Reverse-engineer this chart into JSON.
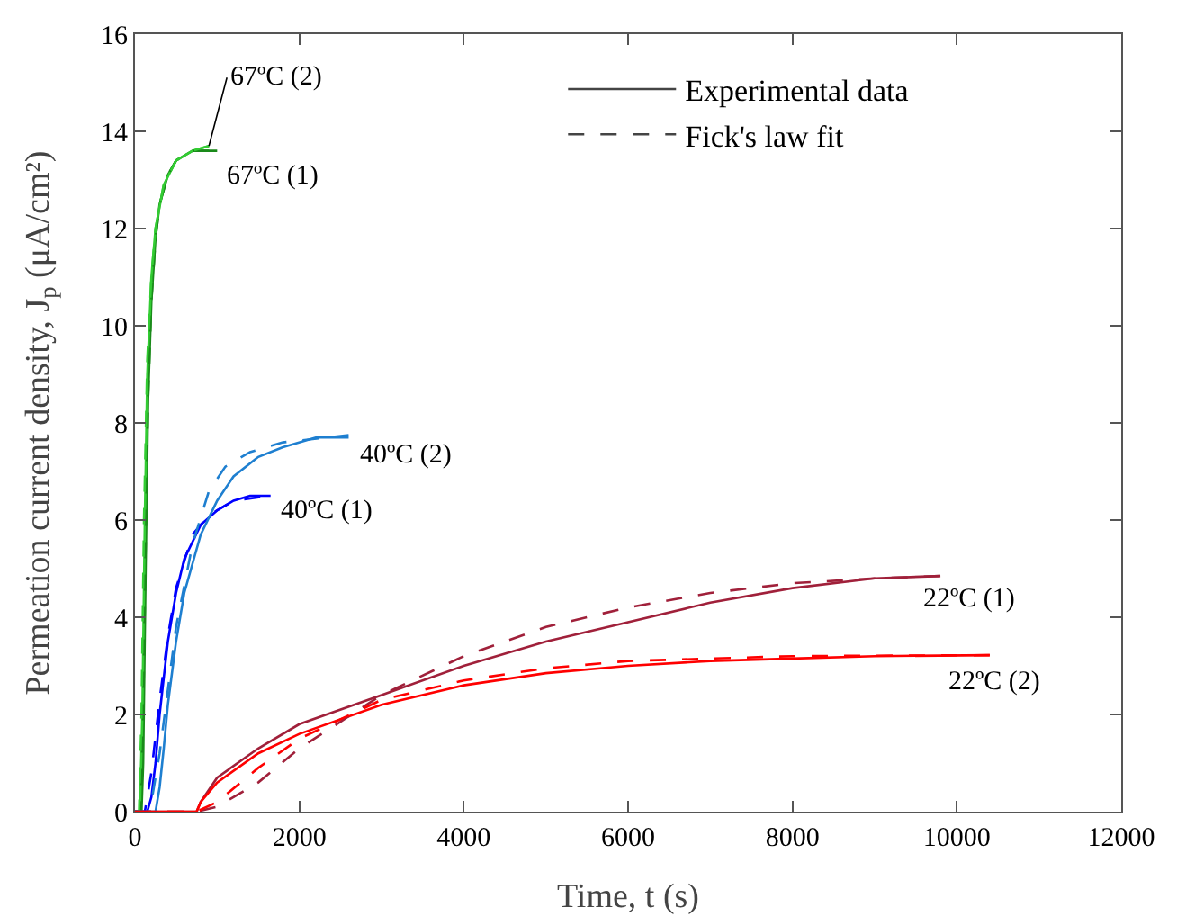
{
  "chart_data": {
    "type": "line",
    "xlabel": "Time, t (s)",
    "ylabel": "Permeation current density, J$_{p}$ (μA/cm²)",
    "xlim": [
      0,
      12000
    ],
    "xticks": [
      0,
      2000,
      4000,
      6000,
      8000,
      10000,
      12000
    ],
    "ylim": [
      0,
      16
    ],
    "yticks": [
      0,
      2,
      4,
      6,
      8,
      10,
      12,
      14,
      16
    ],
    "grid": false,
    "legend": "top right",
    "marker": "none",
    "series": [
      {
        "name": "67ºC (1)",
        "color": "#1a8a1a",
        "line_style": "solid",
        "x": [
          0,
          80,
          100,
          130,
          160,
          200,
          250,
          300,
          400,
          500,
          700,
          900,
          1000
        ],
        "values": [
          0,
          0,
          1,
          5,
          8.5,
          10.5,
          11.8,
          12.5,
          13.1,
          13.4,
          13.6,
          13.6,
          13.6
        ]
      },
      {
        "name": "67ºC (2)",
        "color": "#33cc33",
        "line_style": "solid",
        "x": [
          0,
          60,
          90,
          120,
          150,
          200,
          250,
          350,
          500,
          700,
          900
        ],
        "values": [
          0,
          0,
          2,
          6,
          9,
          11,
          12,
          12.9,
          13.4,
          13.6,
          13.7
        ]
      },
      {
        "name": "40ºC (1)",
        "color": "#0000ff",
        "line_style": "solid",
        "x": [
          0,
          150,
          200,
          250,
          300,
          400,
          500,
          600,
          800,
          1000,
          1200,
          1400,
          1650
        ],
        "values": [
          0,
          0,
          0.3,
          1,
          2,
          3.5,
          4.5,
          5.2,
          5.9,
          6.2,
          6.4,
          6.5,
          6.5
        ]
      },
      {
        "name": "40ºC (2)",
        "color": "#1e7fd0",
        "line_style": "solid",
        "x": [
          0,
          250,
          300,
          350,
          400,
          500,
          600,
          800,
          1000,
          1200,
          1500,
          1800,
          2200,
          2600
        ],
        "values": [
          0,
          0,
          0.5,
          1.3,
          2.2,
          3.5,
          4.5,
          5.7,
          6.4,
          6.9,
          7.3,
          7.5,
          7.7,
          7.7
        ]
      },
      {
        "name": "22ºC (1)",
        "color": "#a0203a",
        "line_style": "solid",
        "x": [
          0,
          750,
          800,
          1000,
          1500,
          2000,
          3000,
          4000,
          5000,
          6000,
          7000,
          8000,
          9000,
          9800
        ],
        "values": [
          0,
          0,
          0.2,
          0.7,
          1.3,
          1.8,
          2.4,
          3.0,
          3.5,
          3.9,
          4.3,
          4.6,
          4.8,
          4.85
        ]
      },
      {
        "name": "22ºC (2)",
        "color": "#ff0000",
        "line_style": "solid",
        "x": [
          0,
          750,
          800,
          1000,
          1500,
          2000,
          3000,
          4000,
          5000,
          6000,
          7000,
          8000,
          9000,
          10400
        ],
        "values": [
          0,
          0,
          0.2,
          0.6,
          1.2,
          1.6,
          2.2,
          2.6,
          2.85,
          3.0,
          3.1,
          3.15,
          3.2,
          3.22
        ]
      },
      {
        "color": "#1a8a1a",
        "line_style": "dashed",
        "x": [
          0,
          70,
          100,
          130,
          160,
          200,
          250,
          300,
          400,
          500,
          700,
          1000
        ],
        "values": [
          0,
          0,
          2,
          5.5,
          8.5,
          10.5,
          11.8,
          12.5,
          13.1,
          13.4,
          13.6,
          13.6
        ]
      },
      {
        "color": "#33cc33",
        "line_style": "dashed",
        "x": [
          0,
          50,
          80,
          110,
          150,
          200,
          250,
          350,
          500,
          700,
          900
        ],
        "values": [
          0,
          0,
          2,
          6,
          9.3,
          11,
          12,
          12.9,
          13.4,
          13.6,
          13.7
        ]
      },
      {
        "color": "#0000ff",
        "line_style": "dashed",
        "x": [
          0,
          120,
          200,
          300,
          400,
          500,
          700,
          900,
          1200,
          1650
        ],
        "values": [
          0,
          0,
          0.8,
          2.3,
          3.6,
          4.6,
          5.7,
          6.1,
          6.4,
          6.5
        ]
      },
      {
        "color": "#1e7fd0",
        "line_style": "dashed",
        "x": [
          0,
          180,
          300,
          400,
          500,
          700,
          900,
          1100,
          1400,
          1800,
          2600
        ],
        "values": [
          0,
          0,
          1.2,
          2.5,
          3.8,
          5.5,
          6.6,
          7.1,
          7.4,
          7.6,
          7.75
        ]
      },
      {
        "color": "#a0203a",
        "line_style": "dashed",
        "x": [
          0,
          750,
          1000,
          1500,
          2000,
          3000,
          4000,
          5000,
          6000,
          7000,
          8000,
          9000,
          9800
        ],
        "values": [
          0,
          0,
          0.1,
          0.6,
          1.3,
          2.4,
          3.2,
          3.8,
          4.2,
          4.5,
          4.7,
          4.8,
          4.85
        ]
      },
      {
        "color": "#ff0000",
        "line_style": "dashed",
        "x": [
          0,
          750,
          1000,
          1500,
          2000,
          3000,
          4000,
          5000,
          6000,
          8000,
          10400
        ],
        "values": [
          0,
          0,
          0.2,
          0.9,
          1.5,
          2.3,
          2.7,
          2.95,
          3.1,
          3.2,
          3.22
        ]
      },
      {
        "name": "Experimental data",
        "color": "#444444",
        "line_style": "solid"
      },
      {
        "name": "Fick's law fit",
        "color": "#444444",
        "line_style": "dashed"
      }
    ]
  }
}
